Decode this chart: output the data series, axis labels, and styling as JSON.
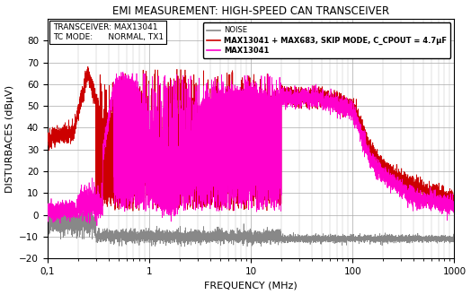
{
  "title": "EMI MEASUREMENT: HIGH-SPEED CAN TRANSCEIVER",
  "xlabel": "FREQUENCY (MHz)",
  "ylabel": "DISTURBACES (dBμV)",
  "xlim": [
    0.1,
    1000
  ],
  "ylim": [
    -20,
    90
  ],
  "yticks": [
    -20,
    -10,
    0,
    10,
    20,
    30,
    40,
    50,
    60,
    70,
    80
  ],
  "legend_box_line1": "TRANSCEIVER: MAX13041",
  "legend_box_line2": "TC MODE:      NORMAL, TX1",
  "legend_noise": "NOISE",
  "legend_red": "MAX13041 + MAX683, SKIP MODE, C_CPOUT = 4.7μF",
  "legend_mag": "MAX13041",
  "color_noise": "#888888",
  "color_red": "#cc0000",
  "color_mag": "#ff00cc",
  "color_bg": "#ffffff",
  "color_grid": "#aaaaaa",
  "figsize": [
    5.24,
    3.29
  ],
  "dpi": 100
}
